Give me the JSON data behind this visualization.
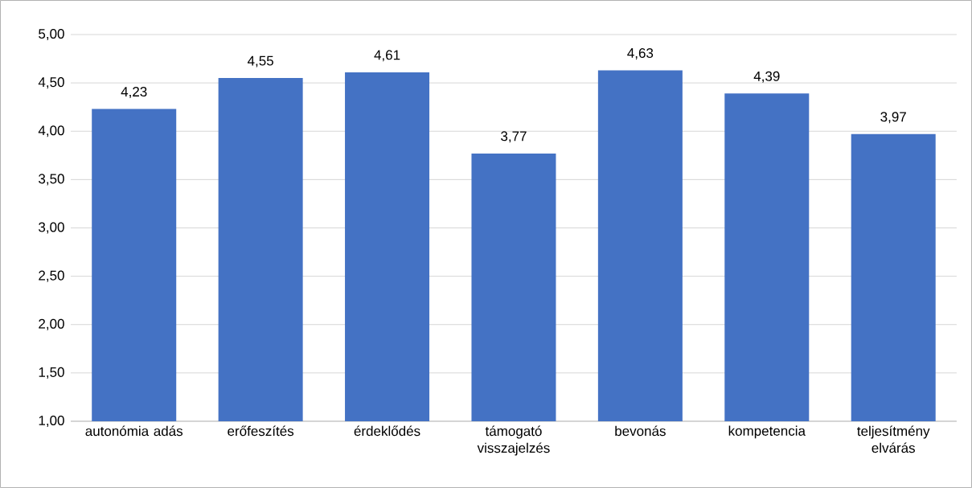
{
  "chart_data": {
    "type": "bar",
    "categories": [
      "autonómia adás",
      "erőfeszítés",
      "érdeklődés",
      "támogató visszajelzés",
      "bevonás",
      "kompetencia",
      "teljesítmény elvárás"
    ],
    "values": [
      4.23,
      4.55,
      4.61,
      3.77,
      4.63,
      4.39,
      3.97
    ],
    "value_labels": [
      "4,23",
      "4,55",
      "4,61",
      "3,77",
      "4,63",
      "4,39",
      "3,97"
    ],
    "color": "#4472c4",
    "ylim": [
      1,
      5
    ],
    "yticks": [
      {
        "value": 1,
        "label": "1,00"
      },
      {
        "value": 1.5,
        "label": "1,50"
      },
      {
        "value": 2,
        "label": "2,00"
      },
      {
        "value": 2.5,
        "label": "2,50"
      },
      {
        "value": 3,
        "label": "3,00"
      },
      {
        "value": 3.5,
        "label": "3,50"
      },
      {
        "value": 4,
        "label": "4,00"
      },
      {
        "value": 4.5,
        "label": "4,50"
      },
      {
        "value": 5,
        "label": "5,00"
      }
    ],
    "grid": "y"
  }
}
